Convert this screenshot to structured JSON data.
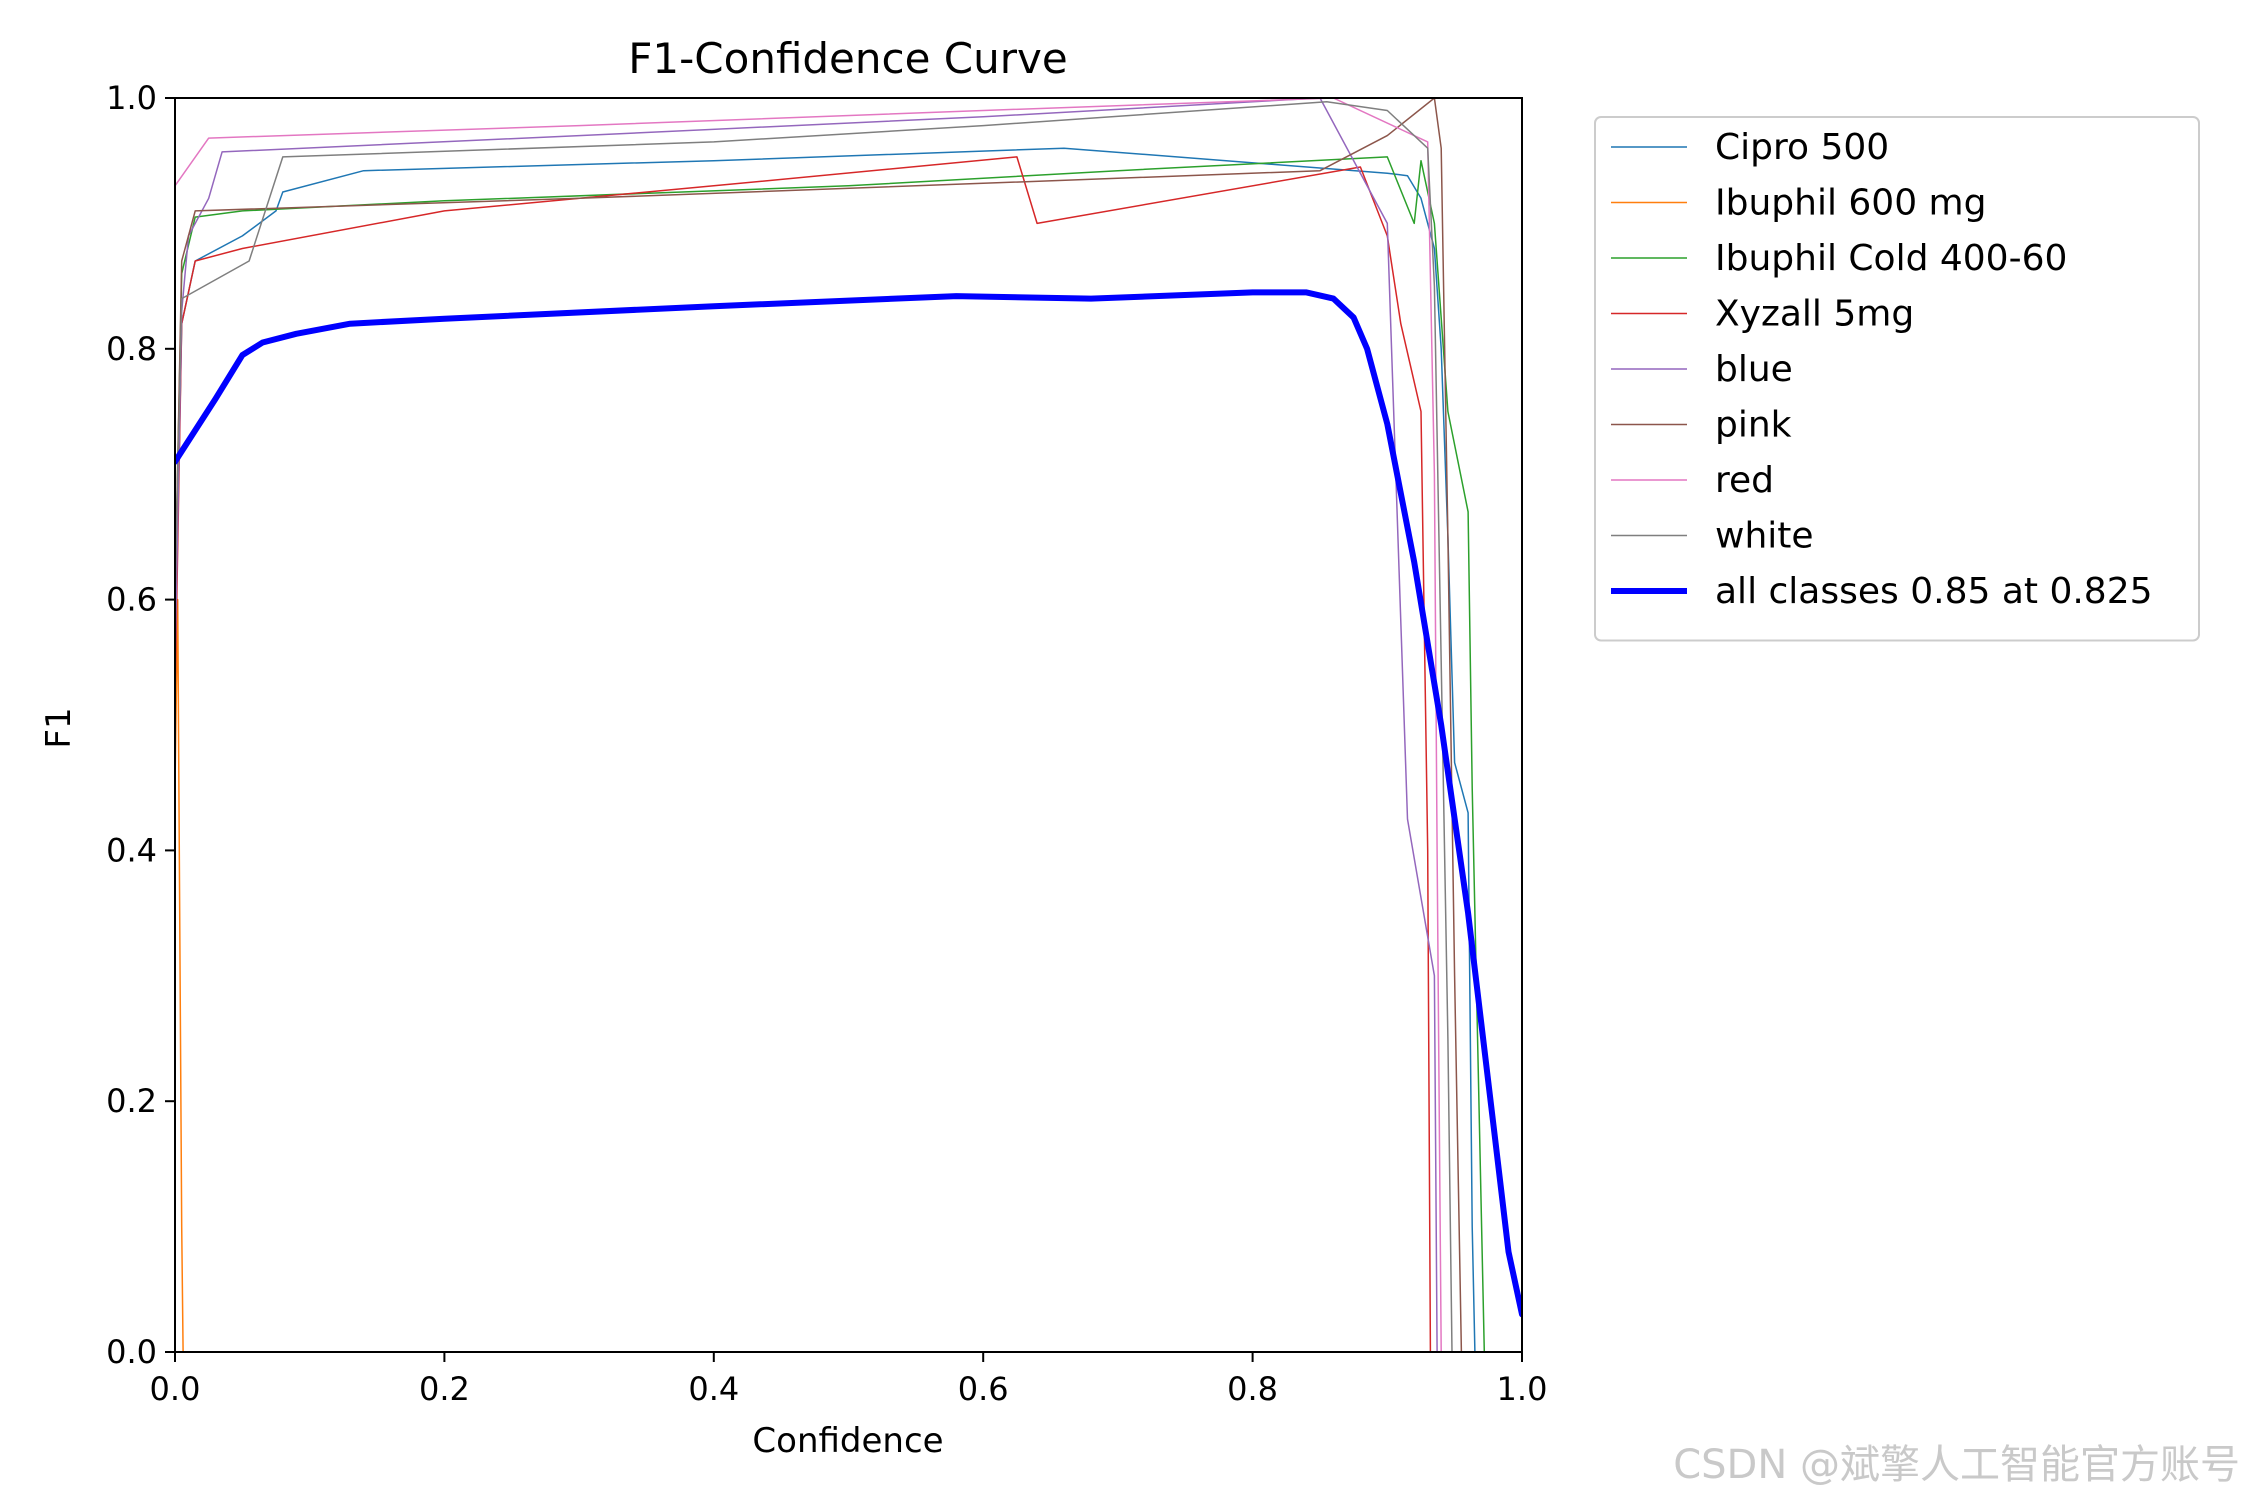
{
  "chart_data": {
    "type": "line",
    "title": "F1-Confidence Curve",
    "xlabel": "Confidence",
    "ylabel": "F1",
    "xlim": [
      0,
      1
    ],
    "ylim": [
      0,
      1
    ],
    "xticks": [
      "0.0",
      "0.2",
      "0.4",
      "0.6",
      "0.8",
      "1.0"
    ],
    "yticks": [
      "0.0",
      "0.2",
      "0.4",
      "0.6",
      "0.8",
      "1.0"
    ],
    "grid": false,
    "legend_position": "outside-upper-right",
    "series": [
      {
        "name": "Cipro 500",
        "color": "#1f77b4",
        "width": 1.5,
        "points": [
          [
            0,
            0.55
          ],
          [
            0.005,
            0.82
          ],
          [
            0.015,
            0.87
          ],
          [
            0.05,
            0.89
          ],
          [
            0.075,
            0.91
          ],
          [
            0.08,
            0.925
          ],
          [
            0.14,
            0.942
          ],
          [
            0.4,
            0.95
          ],
          [
            0.66,
            0.96
          ],
          [
            0.9,
            0.94
          ],
          [
            0.915,
            0.938
          ],
          [
            0.925,
            0.92
          ],
          [
            0.935,
            0.88
          ],
          [
            0.94,
            0.8
          ],
          [
            0.945,
            0.65
          ],
          [
            0.95,
            0.47
          ],
          [
            0.96,
            0.43
          ],
          [
            0.963,
            0.1
          ],
          [
            0.965,
            0
          ]
        ]
      },
      {
        "name": "Ibuphil 600 mg",
        "color": "#ff7f0e",
        "width": 1.5,
        "points": [
          [
            0,
            0.45
          ],
          [
            0.002,
            0.6
          ],
          [
            0.005,
            0.1
          ],
          [
            0.006,
            0
          ],
          [
            1,
            0
          ]
        ]
      },
      {
        "name": "Ibuphil Cold 400-60",
        "color": "#2ca02c",
        "width": 1.5,
        "points": [
          [
            0,
            0.6
          ],
          [
            0.005,
            0.86
          ],
          [
            0.015,
            0.905
          ],
          [
            0.05,
            0.91
          ],
          [
            0.2,
            0.918
          ],
          [
            0.5,
            0.93
          ],
          [
            0.7,
            0.942
          ],
          [
            0.9,
            0.953
          ],
          [
            0.92,
            0.9
          ],
          [
            0.925,
            0.95
          ],
          [
            0.935,
            0.9
          ],
          [
            0.945,
            0.75
          ],
          [
            0.96,
            0.67
          ],
          [
            0.963,
            0.45
          ],
          [
            0.97,
            0.1
          ],
          [
            0.972,
            0
          ]
        ]
      },
      {
        "name": "Xyzall 5mg",
        "color": "#d62728",
        "width": 1.5,
        "points": [
          [
            0,
            0.52
          ],
          [
            0.005,
            0.82
          ],
          [
            0.015,
            0.87
          ],
          [
            0.05,
            0.88
          ],
          [
            0.2,
            0.91
          ],
          [
            0.4,
            0.93
          ],
          [
            0.625,
            0.953
          ],
          [
            0.64,
            0.9
          ],
          [
            0.88,
            0.945
          ],
          [
            0.9,
            0.89
          ],
          [
            0.91,
            0.82
          ],
          [
            0.925,
            0.75
          ],
          [
            0.93,
            0.4
          ],
          [
            0.932,
            0
          ]
        ]
      },
      {
        "name": "blue",
        "color": "#9467bd",
        "width": 1.5,
        "points": [
          [
            0,
            0.55
          ],
          [
            0.005,
            0.83
          ],
          [
            0.01,
            0.89
          ],
          [
            0.025,
            0.92
          ],
          [
            0.035,
            0.957
          ],
          [
            0.3,
            0.97
          ],
          [
            0.6,
            0.985
          ],
          [
            0.85,
            1.0
          ],
          [
            0.9,
            0.9
          ],
          [
            0.915,
            0.425
          ],
          [
            0.935,
            0.3
          ],
          [
            0.937,
            0
          ]
        ]
      },
      {
        "name": "pink",
        "color": "#8c564b",
        "width": 1.5,
        "points": [
          [
            0,
            0.6
          ],
          [
            0.005,
            0.87
          ],
          [
            0.015,
            0.91
          ],
          [
            0.3,
            0.92
          ],
          [
            0.6,
            0.932
          ],
          [
            0.85,
            0.942
          ],
          [
            0.9,
            0.97
          ],
          [
            0.935,
            1.0
          ],
          [
            0.94,
            0.96
          ],
          [
            0.945,
            0.65
          ],
          [
            0.95,
            0.3
          ],
          [
            0.955,
            0
          ]
        ]
      },
      {
        "name": "red",
        "color": "#e377c2",
        "width": 1.5,
        "points": [
          [
            0,
            0.93
          ],
          [
            0.025,
            0.968
          ],
          [
            0.3,
            0.978
          ],
          [
            0.6,
            0.99
          ],
          [
            0.86,
            1.0
          ],
          [
            0.93,
            0.965
          ],
          [
            0.935,
            0.7
          ],
          [
            0.937,
            0.4
          ],
          [
            0.94,
            0
          ]
        ]
      },
      {
        "name": "white",
        "color": "#7f7f7f",
        "width": 1.5,
        "points": [
          [
            0,
            0.6
          ],
          [
            0.005,
            0.84
          ],
          [
            0.055,
            0.87
          ],
          [
            0.08,
            0.953
          ],
          [
            0.4,
            0.965
          ],
          [
            0.6,
            0.978
          ],
          [
            0.855,
            0.997
          ],
          [
            0.9,
            0.99
          ],
          [
            0.93,
            0.96
          ],
          [
            0.935,
            0.85
          ],
          [
            0.94,
            0.55
          ],
          [
            0.945,
            0.25
          ],
          [
            0.948,
            0
          ]
        ]
      },
      {
        "name": "all classes 0.85 at 0.825",
        "color": "#0000ff",
        "width": 6,
        "points": [
          [
            0,
            0.71
          ],
          [
            0.03,
            0.76
          ],
          [
            0.05,
            0.795
          ],
          [
            0.065,
            0.805
          ],
          [
            0.09,
            0.812
          ],
          [
            0.13,
            0.82
          ],
          [
            0.2,
            0.824
          ],
          [
            0.4,
            0.834
          ],
          [
            0.58,
            0.842
          ],
          [
            0.68,
            0.84
          ],
          [
            0.8,
            0.845
          ],
          [
            0.84,
            0.845
          ],
          [
            0.86,
            0.84
          ],
          [
            0.875,
            0.825
          ],
          [
            0.885,
            0.8
          ],
          [
            0.9,
            0.74
          ],
          [
            0.92,
            0.63
          ],
          [
            0.94,
            0.5
          ],
          [
            0.96,
            0.35
          ],
          [
            0.98,
            0.17
          ],
          [
            0.99,
            0.08
          ],
          [
            1.0,
            0.03
          ]
        ]
      }
    ]
  },
  "watermark": "CSDN @斌擎人工智能官方账号"
}
